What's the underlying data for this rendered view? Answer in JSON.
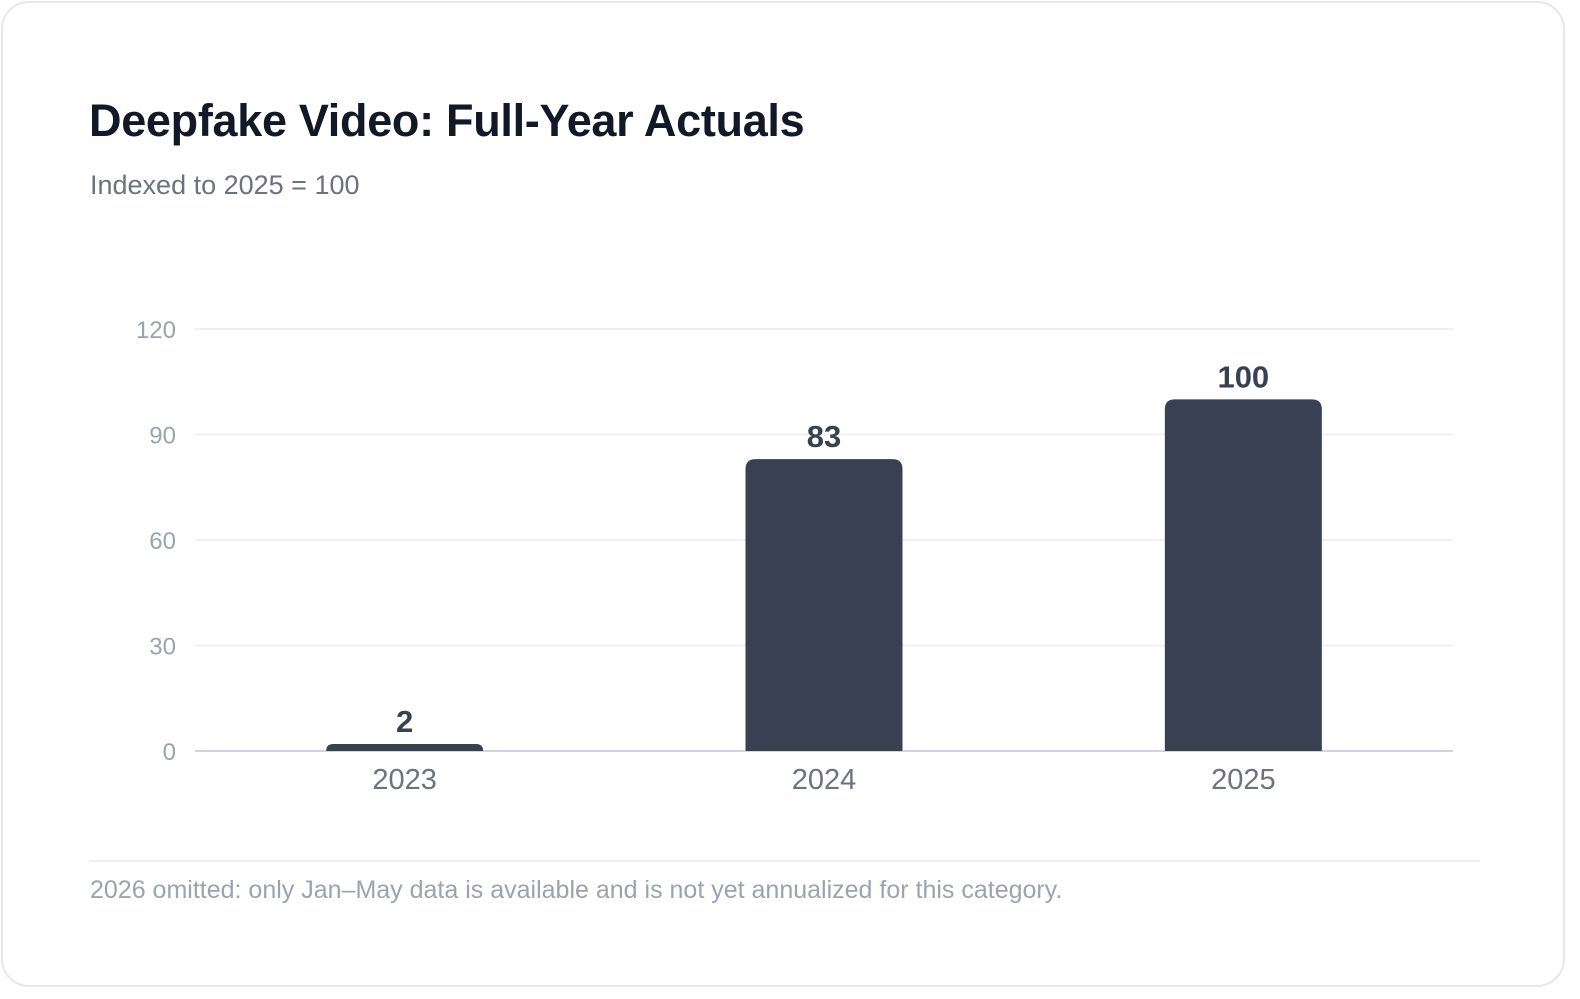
{
  "title": "Deepfake Video: Full-Year Actuals",
  "subtitle": "Indexed to 2025 = 100",
  "footnote": "2026 omitted: only Jan–May data is available and is not yet annualized for this category.",
  "colors": {
    "bar": "#374151",
    "grid": "#eef0f3",
    "axis": "#d1d5db",
    "tick_label": "#9ca3af",
    "category_label": "#6b7280",
    "value_label": "#374151"
  },
  "chart_data": {
    "type": "bar",
    "categories": [
      "2023",
      "2024",
      "2025"
    ],
    "values": [
      2,
      83,
      100
    ],
    "data_labels": [
      "2",
      "83",
      "100"
    ],
    "title": "Deepfake Video: Full-Year Actuals",
    "subtitle": "Indexed to 2025 = 100",
    "xlabel": "",
    "ylabel": "",
    "ylim": [
      0,
      120
    ],
    "yticks": [
      0,
      30,
      60,
      90,
      120
    ],
    "ytick_labels": [
      "0",
      "30",
      "60",
      "90",
      "120"
    ],
    "grid": true,
    "legend": "none"
  }
}
